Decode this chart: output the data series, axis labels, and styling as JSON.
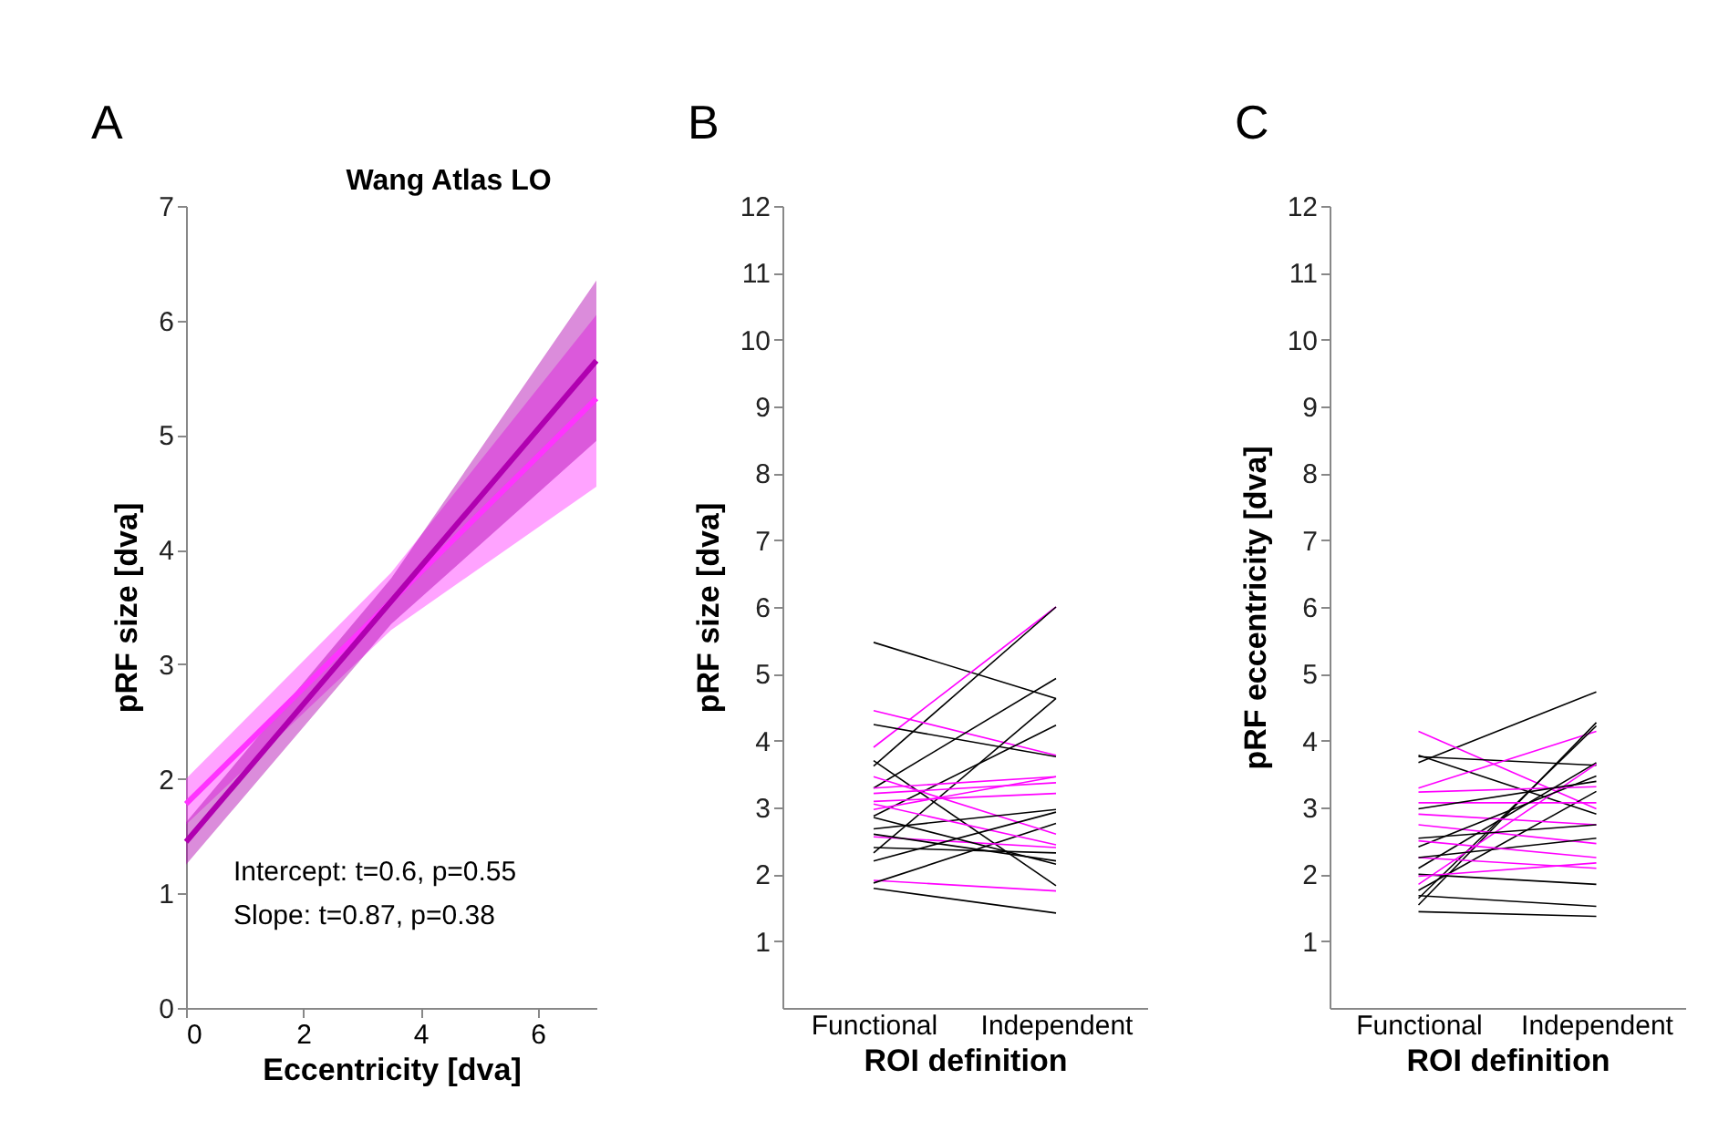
{
  "chart_data": [
    {
      "type": "line",
      "title": "Wang Atlas LO",
      "xlabel": "Eccentricity [dva]",
      "ylabel": "pRF size [dva]",
      "xlim": [
        0,
        7
      ],
      "xticks": [
        0,
        2,
        4,
        6
      ],
      "ylim": [
        0,
        7
      ],
      "yticks": [
        0,
        1,
        2,
        3,
        4,
        5,
        6,
        7
      ],
      "grid": false,
      "legend": false,
      "annotations": [
        "A",
        "Intercept: t=0.6, p=0.55",
        "Slope: t=0.87, p=0.38"
      ],
      "series": [
        {
          "color": "#ff33ff",
          "x": [
            0,
            3.5,
            7
          ],
          "values": [
            1.78,
            3.55,
            5.32
          ],
          "lower": [
            1.6,
            3.3,
            4.55
          ],
          "upper": [
            2.0,
            3.8,
            6.05
          ]
        },
        {
          "color": "#b000b0",
          "x": [
            0,
            3.5,
            7
          ],
          "values": [
            1.45,
            3.55,
            5.65
          ],
          "lower": [
            1.25,
            3.35,
            4.95
          ],
          "upper": [
            1.62,
            3.75,
            6.35
          ]
        }
      ]
    },
    {
      "type": "line",
      "xlabel": "ROI definition",
      "ylabel": "pRF size [dva]",
      "categories": [
        "Functional",
        "Independent"
      ],
      "ylim": [
        0,
        12
      ],
      "yticks": [
        1,
        2,
        3,
        4,
        5,
        6,
        7,
        8,
        9,
        10,
        11,
        12
      ],
      "grid": false,
      "legend": false,
      "annotations": [
        "B"
      ],
      "series": [
        {
          "color": "#000000",
          "values": [
            5.47,
            4.63
          ]
        },
        {
          "color": "#ff00ff",
          "values": [
            3.9,
            6.0
          ]
        },
        {
          "color": "#000000",
          "values": [
            3.62,
            6.0
          ]
        },
        {
          "color": "#ff00ff",
          "values": [
            4.45,
            3.78
          ]
        },
        {
          "color": "#000000",
          "values": [
            4.24,
            3.76
          ]
        },
        {
          "color": "#000000",
          "values": [
            3.29,
            4.93
          ]
        },
        {
          "color": "#000000",
          "values": [
            3.7,
            1.83
          ]
        },
        {
          "color": "#000000",
          "values": [
            2.32,
            4.63
          ]
        },
        {
          "color": "#000000",
          "values": [
            2.87,
            4.23
          ]
        },
        {
          "color": "#ff00ff",
          "values": [
            1.91,
            1.75
          ]
        },
        {
          "color": "#000000",
          "values": [
            1.79,
            1.42
          ]
        },
        {
          "color": "#000000",
          "values": [
            1.87,
            2.76
          ]
        },
        {
          "color": "#ff00ff",
          "values": [
            3.29,
            3.46
          ]
        },
        {
          "color": "#ff00ff",
          "values": [
            3.21,
            3.37
          ]
        },
        {
          "color": "#ff00ff",
          "values": [
            3.09,
            3.21
          ]
        },
        {
          "color": "#ff00ff",
          "values": [
            3.46,
            2.6
          ]
        },
        {
          "color": "#ff00ff",
          "values": [
            2.56,
            2.4
          ]
        },
        {
          "color": "#000000",
          "values": [
            2.85,
            2.15
          ]
        },
        {
          "color": "#000000",
          "values": [
            2.4,
            2.32
          ]
        },
        {
          "color": "#000000",
          "values": [
            2.68,
            2.97
          ]
        },
        {
          "color": "#ff00ff",
          "values": [
            3.05,
            2.44
          ]
        },
        {
          "color": "#000000",
          "values": [
            2.6,
            2.2
          ]
        },
        {
          "color": "#ff00ff",
          "values": [
            2.97,
            3.46
          ]
        },
        {
          "color": "#000000",
          "values": [
            2.2,
            2.93
          ]
        }
      ]
    },
    {
      "type": "line",
      "xlabel": "ROI definition",
      "ylabel": "pRF eccentricity [dva]",
      "categories": [
        "Functional",
        "Independent"
      ],
      "ylim": [
        0,
        12
      ],
      "yticks": [
        1,
        2,
        3,
        4,
        5,
        6,
        7,
        8,
        9,
        10,
        11,
        12
      ],
      "grid": false,
      "legend": false,
      "annotations": [
        "C"
      ],
      "series": [
        {
          "color": "#000000",
          "values": [
            3.67,
            4.73
          ]
        },
        {
          "color": "#ff00ff",
          "values": [
            4.14,
            2.98
          ]
        },
        {
          "color": "#000000",
          "values": [
            3.76,
            3.63
          ]
        },
        {
          "color": "#000000",
          "values": [
            3.78,
            2.9
          ]
        },
        {
          "color": "#ff00ff",
          "values": [
            3.29,
            4.14
          ]
        },
        {
          "color": "#000000",
          "values": [
            1.54,
            4.27
          ]
        },
        {
          "color": "#000000",
          "values": [
            1.64,
            4.22
          ]
        },
        {
          "color": "#000000",
          "values": [
            2.09,
            3.67
          ]
        },
        {
          "color": "#000000",
          "values": [
            1.76,
            3.24
          ]
        },
        {
          "color": "#ff00ff",
          "values": [
            1.85,
            3.65
          ]
        },
        {
          "color": "#000000",
          "values": [
            1.44,
            1.37
          ]
        },
        {
          "color": "#000000",
          "values": [
            1.68,
            1.52
          ]
        },
        {
          "color": "#ff00ff",
          "values": [
            2.9,
            2.74
          ]
        },
        {
          "color": "#ff00ff",
          "values": [
            2.74,
            2.46
          ]
        },
        {
          "color": "#000000",
          "values": [
            2.54,
            2.74
          ]
        },
        {
          "color": "#ff00ff",
          "values": [
            3.07,
            3.07
          ]
        },
        {
          "color": "#000000",
          "values": [
            2.41,
            3.47
          ]
        },
        {
          "color": "#ff00ff",
          "values": [
            2.25,
            2.09
          ]
        },
        {
          "color": "#000000",
          "values": [
            2.0,
            1.85
          ]
        },
        {
          "color": "#ff00ff",
          "values": [
            1.97,
            2.17
          ]
        },
        {
          "color": "#000000",
          "values": [
            2.25,
            2.54
          ]
        },
        {
          "color": "#ff00ff",
          "values": [
            3.23,
            3.31
          ]
        },
        {
          "color": "#000000",
          "values": [
            2.98,
            3.39
          ]
        },
        {
          "color": "#ff00ff",
          "values": [
            2.5,
            2.25
          ]
        }
      ]
    }
  ]
}
